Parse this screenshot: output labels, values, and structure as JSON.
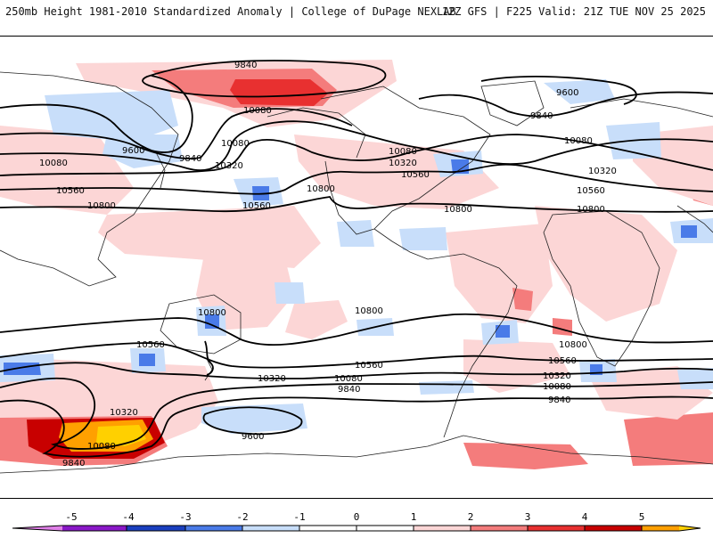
{
  "header": {
    "title": "250mb Height 1981-2010 Standardized Anomaly | College of DuPage NEXLAB",
    "run_info": "12Z GFS | F225 Valid: 21Z TUE NOV 25 2025"
  },
  "colors": {
    "neg5": "#e080e8",
    "neg4": "#8a18c8",
    "neg3": "#1a3fbf",
    "neg2": "#4a7be8",
    "neg1": "#c8defa",
    "zero": "#ffffff",
    "pos1": "#fcd6d6",
    "pos2": "#f47c7c",
    "pos3": "#e83030",
    "pos4": "#c80000",
    "pos5": "#ffa000",
    "pos6": "#ffd000"
  },
  "colorbar": {
    "ticks": [
      "-5",
      "-4",
      "-3",
      "-2",
      "-1",
      "0",
      "1",
      "2",
      "3",
      "4",
      "5"
    ]
  },
  "contour_labels": {
    "nh_9840_a": "9840",
    "nh_10080_a": "10080",
    "nh_9600_a": "9600",
    "nh_10080_b": "10080",
    "nh_9840_b": "9840",
    "nh_10080_c": "10080",
    "nh_10320_a": "10320",
    "nh_10560_a": "10560",
    "nh_10800_a": "10800",
    "nh_10560_b": "10560",
    "nh_10800_b": "10800",
    "nh_10080_d": "10080",
    "nh_10320_b": "10320",
    "nh_10560_c": "10560",
    "nh_10800_c": "10800",
    "nh_9600_b": "9600",
    "nh_9840_c": "9840",
    "nh_10080_e": "10080",
    "nh_10320_c": "10320",
    "nh_10560_d": "10560",
    "nh_10800_d": "10800",
    "sh_10800_a": "10800",
    "sh_10800_b": "10800",
    "sh_10560_a": "10560",
    "sh_10560_b": "10560",
    "sh_10800_c": "10800",
    "sh_10320_a": "10320",
    "sh_10080_a": "10080",
    "sh_9840_a": "9840",
    "sh_10560_c": "10560",
    "sh_10320_b": "10320",
    "sh_10080_b": "10080",
    "sh_9840_b": "9840",
    "sh_10320_c": "10320",
    "sh_10080_c": "10080",
    "sh_9840_c": "9840",
    "sh_9600_a": "9600"
  }
}
